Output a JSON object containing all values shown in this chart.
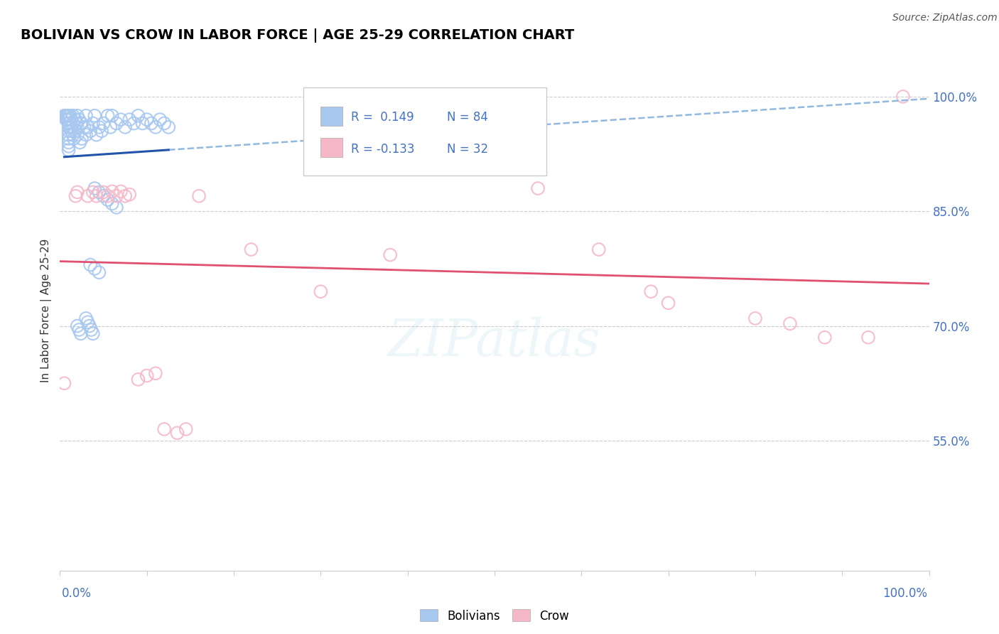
{
  "title": "BOLIVIAN VS CROW IN LABOR FORCE | AGE 25-29 CORRELATION CHART",
  "source_text": "Source: ZipAtlas.com",
  "ylabel": "In Labor Force | Age 25-29",
  "xlim": [
    0.0,
    1.0
  ],
  "ylim": [
    0.38,
    1.06
  ],
  "y_ticks": [
    0.55,
    0.7,
    0.85,
    1.0
  ],
  "y_tick_labels": [
    "55.0%",
    "70.0%",
    "85.0%",
    "100.0%"
  ],
  "blue_fill": "#a8c8f0",
  "pink_fill": "#f5b8c8",
  "blue_line": "#2255aa",
  "pink_line": "#e05070",
  "blue_dash": "#90b8e0",
  "watermark": "ZIPatlas",
  "bolivians_x": [
    0.005,
    0.006,
    0.007,
    0.007,
    0.008,
    0.008,
    0.009,
    0.009,
    0.01,
    0.01,
    0.01,
    0.01,
    0.01,
    0.01,
    0.01,
    0.01,
    0.01,
    0.01,
    0.01,
    0.01,
    0.012,
    0.012,
    0.013,
    0.013,
    0.014,
    0.015,
    0.015,
    0.015,
    0.016,
    0.018,
    0.018,
    0.019,
    0.02,
    0.02,
    0.02,
    0.022,
    0.023,
    0.025,
    0.025,
    0.028,
    0.03,
    0.03,
    0.032,
    0.035,
    0.038,
    0.04,
    0.042,
    0.045,
    0.048,
    0.05,
    0.055,
    0.058,
    0.06,
    0.065,
    0.07,
    0.075,
    0.08,
    0.085,
    0.09,
    0.095,
    0.1,
    0.105,
    0.11,
    0.115,
    0.12,
    0.125,
    0.04,
    0.045,
    0.05,
    0.055,
    0.06,
    0.065,
    0.035,
    0.04,
    0.045,
    0.03,
    0.032,
    0.034,
    0.036,
    0.038,
    0.02,
    0.022,
    0.024
  ],
  "bolivians_y": [
    0.975,
    0.975,
    0.975,
    0.97,
    0.97,
    0.975,
    0.975,
    0.97,
    0.975,
    0.97,
    0.965,
    0.96,
    0.955,
    0.95,
    0.945,
    0.94,
    0.935,
    0.93,
    0.97,
    0.965,
    0.975,
    0.96,
    0.97,
    0.955,
    0.96,
    0.975,
    0.95,
    0.965,
    0.945,
    0.97,
    0.955,
    0.965,
    0.975,
    0.96,
    0.95,
    0.97,
    0.94,
    0.965,
    0.945,
    0.96,
    0.975,
    0.95,
    0.96,
    0.955,
    0.965,
    0.975,
    0.95,
    0.96,
    0.955,
    0.965,
    0.975,
    0.96,
    0.975,
    0.965,
    0.97,
    0.96,
    0.97,
    0.965,
    0.975,
    0.965,
    0.97,
    0.965,
    0.96,
    0.97,
    0.965,
    0.96,
    0.88,
    0.875,
    0.87,
    0.865,
    0.86,
    0.855,
    0.78,
    0.775,
    0.77,
    0.71,
    0.705,
    0.7,
    0.695,
    0.69,
    0.7,
    0.695,
    0.69
  ],
  "crow_x": [
    0.005,
    0.018,
    0.02,
    0.032,
    0.038,
    0.042,
    0.05,
    0.055,
    0.06,
    0.065,
    0.07,
    0.075,
    0.08,
    0.09,
    0.1,
    0.11,
    0.12,
    0.135,
    0.145,
    0.16,
    0.22,
    0.3,
    0.38,
    0.55,
    0.62,
    0.68,
    0.7,
    0.8,
    0.84,
    0.88,
    0.93,
    0.97
  ],
  "crow_y": [
    0.625,
    0.87,
    0.875,
    0.87,
    0.875,
    0.87,
    0.875,
    0.87,
    0.876,
    0.87,
    0.876,
    0.87,
    0.872,
    0.63,
    0.635,
    0.638,
    0.565,
    0.56,
    0.565,
    0.87,
    0.8,
    0.745,
    0.793,
    0.88,
    0.8,
    0.745,
    0.73,
    0.71,
    0.703,
    0.685,
    0.685,
    1.0
  ]
}
